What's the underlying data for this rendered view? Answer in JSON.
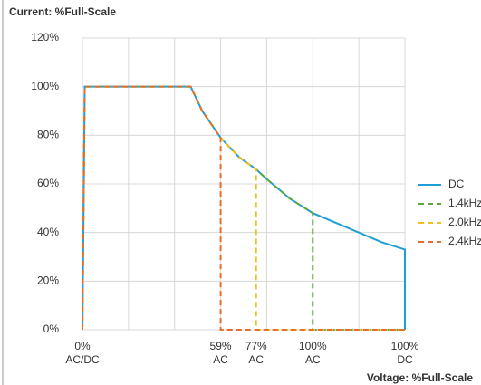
{
  "chart_data": {
    "type": "line",
    "title": "Current: %Full-Scale",
    "x_label": "Voltage: %Full-Scale",
    "xlim": [
      0,
      7
    ],
    "xgrid": [
      0,
      1,
      2,
      3,
      4,
      5,
      6,
      7
    ],
    "xticks": [
      {
        "value": 0,
        "label": "0%\nAC/DC"
      },
      {
        "value": 3,
        "label": "59%\nAC"
      },
      {
        "value": 3.77,
        "label": "77%\nAC"
      },
      {
        "value": 5,
        "label": "100%\nAC"
      },
      {
        "value": 7,
        "label": "100%\nDC"
      }
    ],
    "ylim": [
      0,
      120
    ],
    "yticks": [
      {
        "value": 0,
        "label": "0%"
      },
      {
        "value": 20,
        "label": "20%"
      },
      {
        "value": 40,
        "label": "40%"
      },
      {
        "value": 60,
        "label": "60%"
      },
      {
        "value": 80,
        "label": "80%"
      },
      {
        "value": 100,
        "label": "100%"
      },
      {
        "value": 120,
        "label": "120%"
      }
    ],
    "grid": true,
    "legend": "right",
    "series": [
      {
        "name": "DC",
        "color": "#1f9fd8",
        "dash": false,
        "x": [
          0,
          0.05,
          2.35,
          2.6,
          3,
          3.4,
          3.77,
          4,
          4.5,
          5,
          5.5,
          6,
          6.5,
          7,
          7
        ],
        "values": [
          0,
          100,
          100,
          90,
          79,
          71,
          66,
          62,
          54,
          48,
          44,
          40,
          36,
          33,
          0
        ]
      },
      {
        "name": "1.4kHz",
        "color": "#5aa832",
        "dash": true,
        "x": [
          0,
          0.05,
          2.35,
          2.6,
          3,
          3.4,
          3.77,
          4,
          4.5,
          5,
          5,
          7
        ],
        "values": [
          0,
          100,
          100,
          90,
          79,
          71,
          66,
          62,
          54,
          48,
          0,
          0
        ]
      },
      {
        "name": "2.0kHz",
        "color": "#f0c020",
        "dash": true,
        "x": [
          0,
          0.05,
          2.35,
          2.6,
          3,
          3.4,
          3.77,
          3.77,
          7
        ],
        "values": [
          0,
          100,
          100,
          90,
          79,
          71,
          66,
          0,
          0
        ]
      },
      {
        "name": "2.4kHz",
        "color": "#e0702a",
        "dash": true,
        "x": [
          0,
          0.05,
          2.35,
          2.6,
          3,
          3,
          7
        ],
        "values": [
          0,
          100,
          100,
          90,
          79,
          0,
          0
        ]
      }
    ]
  }
}
